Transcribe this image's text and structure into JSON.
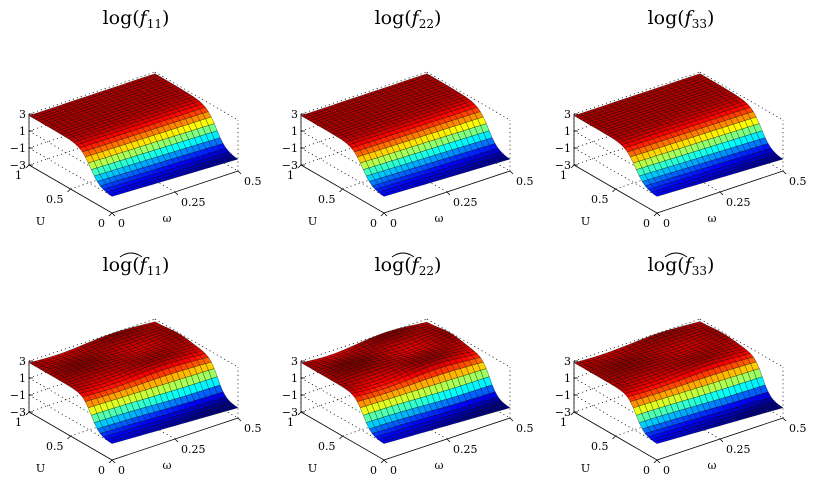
{
  "chart_data": [
    {
      "type": "surface",
      "title": {
        "base": "log(",
        "var": "f",
        "sub": "11",
        "hat": false,
        "close": ")"
      },
      "xlabel": "U",
      "ylabel": "ω",
      "x_ticks": [
        "0",
        "0.5",
        "1"
      ],
      "y_ticks": [
        "0",
        "0.25",
        "0.5"
      ],
      "z_ticks": [
        "−3",
        "−1",
        "1",
        "3"
      ],
      "xlim": [
        0,
        1
      ],
      "ylim": [
        0,
        0.5
      ],
      "zlim": [
        -3,
        3
      ],
      "grid": true,
      "colormap": "jet",
      "surface": {
        "low": -1.1,
        "high": 2.8,
        "center": 0.26,
        "width": 0.06,
        "dip": 0.35,
        "ripple": 0.0
      }
    },
    {
      "type": "surface",
      "title": {
        "base": "log(",
        "var": "f",
        "sub": "22",
        "hat": false,
        "close": ")"
      },
      "xlabel": "U",
      "ylabel": "ω",
      "x_ticks": [
        "0",
        "0.5",
        "1"
      ],
      "y_ticks": [
        "0",
        "0.25",
        "0.5"
      ],
      "z_ticks": [
        "−3",
        "−1",
        "1",
        "3"
      ],
      "xlim": [
        0,
        1
      ],
      "ylim": [
        0,
        0.5
      ],
      "zlim": [
        -3,
        3
      ],
      "grid": true,
      "colormap": "jet",
      "surface": {
        "low": -1.1,
        "high": 2.8,
        "center": 0.26,
        "width": 0.06,
        "dip": 0.35,
        "ripple": 0.0
      }
    },
    {
      "type": "surface",
      "title": {
        "base": "log(",
        "var": "f",
        "sub": "33",
        "hat": false,
        "close": ")"
      },
      "xlabel": "U",
      "ylabel": "ω",
      "x_ticks": [
        "0",
        "0.5",
        "1"
      ],
      "y_ticks": [
        "0",
        "0.25",
        "0.5"
      ],
      "z_ticks": [
        "−3",
        "−1",
        "1",
        "3"
      ],
      "xlim": [
        0,
        1
      ],
      "ylim": [
        0,
        0.5
      ],
      "zlim": [
        -3,
        3
      ],
      "grid": true,
      "colormap": "jet",
      "surface": {
        "low": -1.1,
        "high": 2.8,
        "center": 0.26,
        "width": 0.06,
        "dip": 0.35,
        "ripple": 0.0
      }
    },
    {
      "type": "surface",
      "title": {
        "base": "log(",
        "var": "f",
        "sub": "11",
        "hat": true,
        "close": ")"
      },
      "xlabel": "U",
      "ylabel": "ω",
      "x_ticks": [
        "0",
        "0.5",
        "1"
      ],
      "y_ticks": [
        "0",
        "0.25",
        "0.5"
      ],
      "z_ticks": [
        "−3",
        "−1",
        "1",
        "3"
      ],
      "xlim": [
        0,
        1
      ],
      "ylim": [
        0,
        0.5
      ],
      "zlim": [
        -3,
        3
      ],
      "grid": true,
      "colormap": "jet",
      "surface": {
        "low": -1.1,
        "high": 2.8,
        "center": 0.25,
        "width": 0.05,
        "dip": 0.45,
        "ripple": 0.18
      }
    },
    {
      "type": "surface",
      "title": {
        "base": "log(",
        "var": "f",
        "sub": "22",
        "hat": true,
        "close": ")"
      },
      "xlabel": "U",
      "ylabel": "ω",
      "x_ticks": [
        "0",
        "0.5",
        "1"
      ],
      "y_ticks": [
        "0",
        "0.25",
        "0.5"
      ],
      "z_ticks": [
        "−3",
        "−1",
        "1",
        "3"
      ],
      "xlim": [
        0,
        1
      ],
      "ylim": [
        0,
        0.5
      ],
      "zlim": [
        -3,
        3
      ],
      "grid": true,
      "colormap": "jet",
      "surface": {
        "low": -1.1,
        "high": 2.8,
        "center": 0.25,
        "width": 0.05,
        "dip": 0.45,
        "ripple": 0.25
      }
    },
    {
      "type": "surface",
      "title": {
        "base": "log(",
        "var": "f",
        "sub": "33",
        "hat": true,
        "close": ")"
      },
      "xlabel": "U",
      "ylabel": "ω",
      "x_ticks": [
        "0",
        "0.5",
        "1"
      ],
      "y_ticks": [
        "0",
        "0.25",
        "0.5"
      ],
      "z_ticks": [
        "−3",
        "−1",
        "1",
        "3"
      ],
      "xlim": [
        0,
        1
      ],
      "ylim": [
        0,
        0.5
      ],
      "zlim": [
        -3,
        3
      ],
      "grid": true,
      "colormap": "jet",
      "surface": {
        "low": -1.1,
        "high": 2.8,
        "center": 0.25,
        "width": 0.05,
        "dip": 0.45,
        "ripple": 0.15
      }
    }
  ]
}
